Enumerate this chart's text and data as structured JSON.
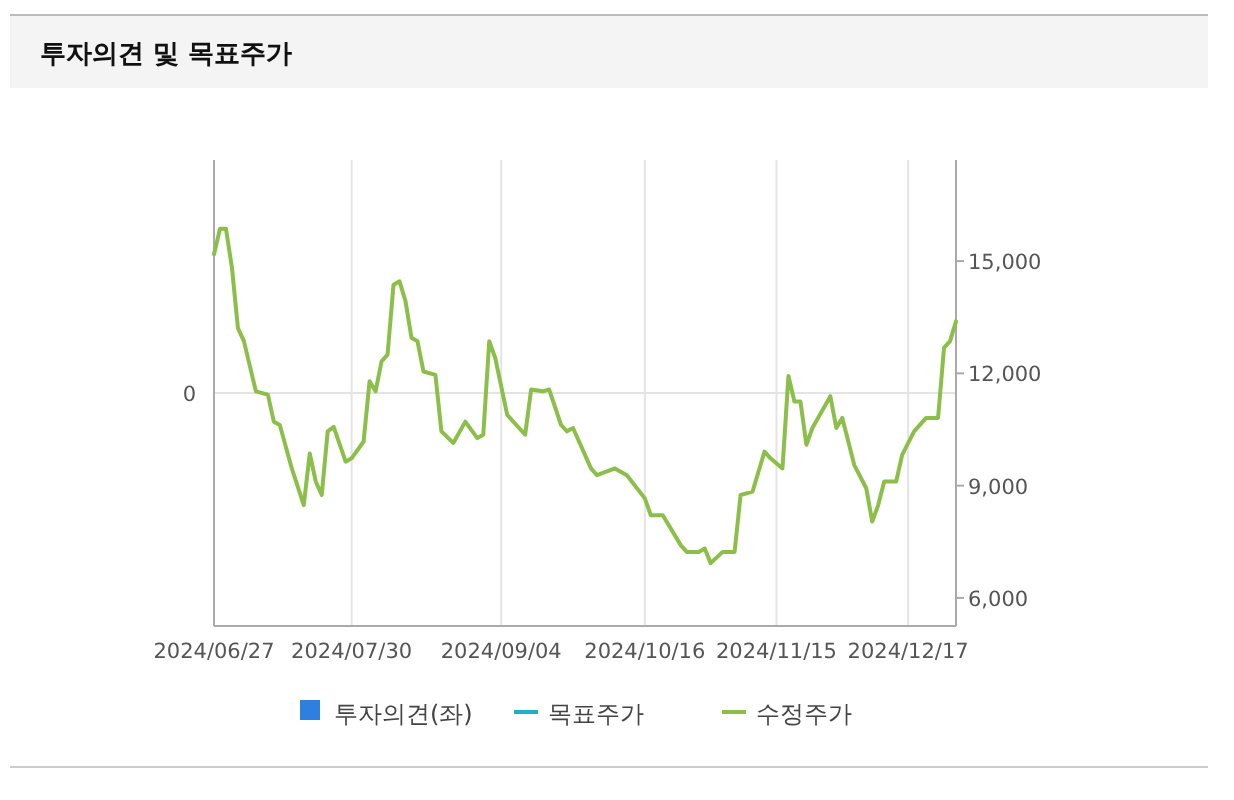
{
  "chart_data": {
    "type": "line",
    "title": "투자의견 및 목표주가",
    "categories": [
      "2024/06/27",
      null,
      null,
      null,
      null,
      null,
      null,
      null,
      null,
      null,
      null,
      null,
      null,
      null,
      null,
      null,
      null,
      null,
      null,
      null,
      null,
      null,
      null,
      "2024/07/30",
      null,
      null,
      null,
      null,
      null,
      null,
      null,
      null,
      null,
      null,
      null,
      null,
      null,
      null,
      null,
      null,
      null,
      null,
      null,
      null,
      null,
      null,
      null,
      null,
      "2024/09/04",
      null,
      null,
      null,
      null,
      null,
      null,
      null,
      null,
      null,
      null,
      null,
      null,
      null,
      null,
      null,
      null,
      null,
      null,
      null,
      null,
      null,
      null,
      null,
      "2024/10/16",
      null,
      null,
      null,
      null,
      null,
      null,
      null,
      null,
      null,
      null,
      null,
      null,
      null,
      null,
      null,
      null,
      null,
      null,
      null,
      null,
      null,
      "2024/11/15",
      null,
      null,
      null,
      null,
      null,
      null,
      null,
      null,
      null,
      null,
      null,
      null,
      null,
      null,
      null,
      null,
      null,
      null,
      null,
      null,
      null,
      "2024/12/17",
      null,
      null,
      null,
      null,
      null,
      null,
      null,
      null
    ],
    "annotations": [
      "0"
    ],
    "y2lim": [
      5250,
      17700
    ],
    "y2ticks": [
      {
        "value": 6000,
        "label": "6,000"
      },
      {
        "value": 9000,
        "label": "9,000"
      },
      {
        "value": 12000,
        "label": "12,000"
      },
      {
        "value": 15000,
        "label": "15,000"
      }
    ],
    "grid": true,
    "legend": "bottom",
    "series": [
      {
        "name": "투자의견(좌)",
        "type": "bar",
        "color": "#2f7fe0",
        "values": [
          null,
          null,
          null,
          null,
          null,
          null,
          null,
          null,
          null,
          null,
          null,
          null,
          null,
          null,
          null,
          null,
          null,
          null,
          null,
          null,
          null,
          null,
          null,
          null,
          null,
          null,
          null,
          null,
          null,
          null,
          null,
          null,
          null,
          null,
          null,
          null,
          null,
          null,
          null,
          null,
          null,
          null,
          null,
          null,
          null,
          null,
          null,
          null,
          null,
          null,
          null,
          null,
          null,
          null,
          null,
          null,
          null,
          null,
          null,
          null,
          null,
          null,
          null,
          null,
          null,
          null,
          null,
          null,
          null,
          null,
          null,
          null,
          null,
          null,
          null,
          null,
          null,
          null,
          null,
          null,
          null,
          null,
          null,
          null,
          null,
          null,
          null,
          null,
          null,
          null,
          null,
          null,
          null,
          null,
          null,
          null,
          null,
          null,
          null,
          null,
          null,
          null,
          null,
          null,
          null,
          null,
          null,
          null,
          null,
          null,
          null,
          null,
          null,
          null,
          null,
          null,
          null,
          null,
          null,
          null,
          null,
          null,
          null,
          null,
          null
        ]
      },
      {
        "name": "목표주가",
        "type": "line",
        "color": "#1fb0c8",
        "axis": "y2",
        "values": [
          null,
          null,
          null,
          null,
          null,
          null,
          null,
          null,
          null,
          null,
          null,
          null,
          null,
          null,
          null,
          null,
          null,
          null,
          null,
          null,
          null,
          null,
          null,
          null,
          null,
          null,
          null,
          null,
          null,
          null,
          null,
          null,
          null,
          null,
          null,
          null,
          null,
          null,
          null,
          null,
          null,
          null,
          null,
          null,
          null,
          null,
          null,
          null,
          null,
          null,
          null,
          null,
          null,
          null,
          null,
          null,
          null,
          null,
          null,
          null,
          null,
          null,
          null,
          null,
          null,
          null,
          null,
          null,
          null,
          null,
          null,
          null,
          null,
          null,
          null,
          null,
          null,
          null,
          null,
          null,
          null,
          null,
          null,
          null,
          null,
          null,
          null,
          null,
          null,
          null,
          null,
          null,
          null,
          null,
          null,
          null,
          null,
          null,
          null,
          null,
          null,
          null,
          null,
          null,
          null,
          null,
          null,
          null,
          null,
          null,
          null,
          null,
          null,
          null,
          null,
          null,
          null,
          null,
          null,
          null,
          null,
          null,
          null,
          null,
          null
        ]
      },
      {
        "name": "수정주가",
        "color": "#8cbf4a",
        "axis": "y2",
        "values": [
          15180,
          15860,
          15860,
          14820,
          13210,
          12860,
          null,
          11520,
          null,
          11430,
          10710,
          10620,
          null,
          9460,
          null,
          8480,
          9860,
          9110,
          8750,
          10450,
          10570,
          null,
          9640,
          9730,
          null,
          10180,
          11790,
          11520,
          12320,
          12500,
          14370,
          14460,
          13930,
          12950,
          12860,
          12050,
          null,
          11960,
          10450,
          null,
          10140,
          null,
          10710,
          null,
          10270,
          10360,
          12860,
          12410,
          null,
          10890,
          null,
          null,
          10360,
          11570,
          null,
          11520,
          11570,
          null,
          10620,
          10450,
          10540,
          null,
          null,
          9460,
          9280,
          null,
          null,
          9460,
          null,
          9280,
          null,
          null,
          8660,
          8210,
          null,
          8210,
          null,
          null,
          7410,
          7230,
          null,
          7230,
          7320,
          6930,
          null,
          7230,
          null,
          7230,
          8750,
          null,
          8840,
          null,
          9910,
          9730,
          null,
          9460,
          11930,
          11250,
          11250,
          10090,
          10540,
          null,
          null,
          11390,
          10540,
          10810,
          null,
          9550,
          null,
          8930,
          8040,
          8480,
          9110,
          null,
          9110,
          9820,
          null,
          10450,
          null,
          10810,
          null,
          10810,
          12680,
          12860,
          13390
        ]
      }
    ]
  }
}
